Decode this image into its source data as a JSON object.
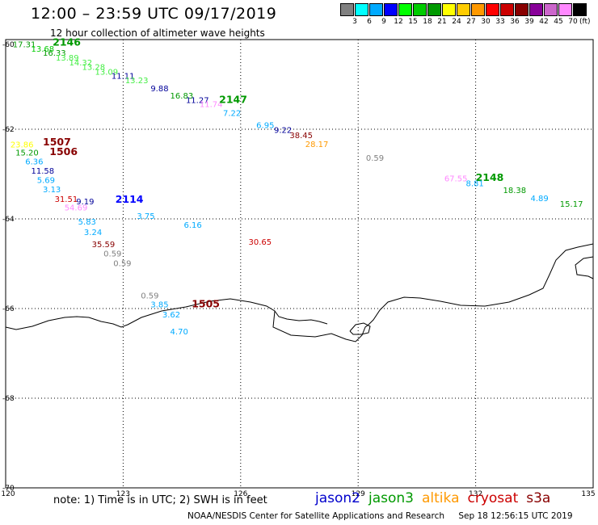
{
  "header": {
    "title": "12:00 – 23:59 UTC 09/17/2019",
    "subtitle": "12 hour collection of altimeter wave heights"
  },
  "legend": {
    "colors": [
      "#808080",
      "#00ffff",
      "#00aaff",
      "#0000ff",
      "#00ff00",
      "#00cc00",
      "#009900",
      "#ffff00",
      "#ffcc00",
      "#ff9900",
      "#ff0000",
      "#cc0000",
      "#880000",
      "#880099",
      "#cc66cc",
      "#ff88ff",
      "#000000"
    ],
    "levels": [
      "3",
      "6",
      "9",
      "12",
      "15",
      "18",
      "21",
      "24",
      "27",
      "30",
      "33",
      "36",
      "39",
      "42",
      "45",
      "70"
    ],
    "unit": "(ft)"
  },
  "axes": {
    "lon_labels": [
      "120",
      "123",
      "126",
      "129",
      "132",
      "135"
    ],
    "lat_labels": [
      "-60",
      "-62",
      "-64",
      "-66",
      "-68",
      "-70"
    ]
  },
  "observations": [
    {
      "text": "17.31",
      "lon": 120.18,
      "lat": -60.1,
      "color": "#009900"
    },
    {
      "text": "2146",
      "lon": 121.2,
      "lat": -60.06,
      "color": "#009900",
      "bold": true
    },
    {
      "text": "13.68",
      "lon": 120.65,
      "lat": -60.2,
      "color": "#00cc00"
    },
    {
      "text": "16.33",
      "lon": 120.95,
      "lat": -60.29,
      "color": "#009900"
    },
    {
      "text": "13.89",
      "lon": 121.28,
      "lat": -60.4,
      "color": "#44ee44"
    },
    {
      "text": "14.32",
      "lon": 121.62,
      "lat": -60.5,
      "color": "#44ee44"
    },
    {
      "text": "13.28",
      "lon": 121.95,
      "lat": -60.6,
      "color": "#44ee44"
    },
    {
      "text": "13.09",
      "lon": 122.28,
      "lat": -60.71,
      "color": "#44ee44"
    },
    {
      "text": "11.11",
      "lon": 122.7,
      "lat": -60.8,
      "color": "#000099"
    },
    {
      "text": "13.23",
      "lon": 123.05,
      "lat": -60.9,
      "color": "#44ee44"
    },
    {
      "text": "9.88",
      "lon": 123.7,
      "lat": -61.08,
      "color": "#000099"
    },
    {
      "text": "16.83",
      "lon": 124.2,
      "lat": -61.24,
      "color": "#009900"
    },
    {
      "text": "11.27",
      "lon": 124.6,
      "lat": -61.34,
      "color": "#000099"
    },
    {
      "text": "11.74",
      "lon": 124.95,
      "lat": -61.43,
      "color": "#ff88ff"
    },
    {
      "text": "2147",
      "lon": 125.45,
      "lat": -61.34,
      "color": "#009900",
      "bold": true
    },
    {
      "text": "7.22",
      "lon": 125.55,
      "lat": -61.63,
      "color": "#00aaff"
    },
    {
      "text": "6.95",
      "lon": 126.4,
      "lat": -61.9,
      "color": "#00aaff"
    },
    {
      "text": "9.22",
      "lon": 126.85,
      "lat": -62.01,
      "color": "#000099"
    },
    {
      "text": "38.45",
      "lon": 127.25,
      "lat": -62.13,
      "color": "#880000"
    },
    {
      "text": "28.17",
      "lon": 127.65,
      "lat": -62.32,
      "color": "#ff9900"
    },
    {
      "text": "0.59",
      "lon": 129.2,
      "lat": -62.63,
      "color": "#808080"
    },
    {
      "text": "23.86",
      "lon": 120.12,
      "lat": -62.33,
      "color": "#ffff00"
    },
    {
      "text": "1507",
      "lon": 120.95,
      "lat": -62.29,
      "color": "#880000",
      "bold": true
    },
    {
      "text": "15.20",
      "lon": 120.25,
      "lat": -62.51,
      "color": "#009900"
    },
    {
      "text": "1506",
      "lon": 121.12,
      "lat": -62.5,
      "color": "#880000",
      "bold": true
    },
    {
      "text": "6.36",
      "lon": 120.5,
      "lat": -62.71,
      "color": "#00aaff"
    },
    {
      "text": "11.58",
      "lon": 120.65,
      "lat": -62.92,
      "color": "#000099"
    },
    {
      "text": "5.69",
      "lon": 120.8,
      "lat": -63.13,
      "color": "#00aaff"
    },
    {
      "text": "3.13",
      "lon": 120.95,
      "lat": -63.33,
      "color": "#00aaff"
    },
    {
      "text": "31.51",
      "lon": 121.25,
      "lat": -63.55,
      "color": "#cc0000"
    },
    {
      "text": "9.19",
      "lon": 121.8,
      "lat": -63.6,
      "color": "#000099"
    },
    {
      "text": "2114",
      "lon": 122.8,
      "lat": -63.57,
      "color": "#0000ff",
      "bold": true
    },
    {
      "text": "54.69",
      "lon": 121.5,
      "lat": -63.74,
      "color": "#ff88ff"
    },
    {
      "text": "3.75",
      "lon": 123.35,
      "lat": -63.93,
      "color": "#00aaff"
    },
    {
      "text": "5.83",
      "lon": 121.85,
      "lat": -64.05,
      "color": "#00aaff"
    },
    {
      "text": "6.16",
      "lon": 124.55,
      "lat": -64.13,
      "color": "#00aaff"
    },
    {
      "text": "3.24",
      "lon": 122.0,
      "lat": -64.29,
      "color": "#00aaff"
    },
    {
      "text": "30.65",
      "lon": 126.2,
      "lat": -64.5,
      "color": "#cc0000"
    },
    {
      "text": "35.59",
      "lon": 122.2,
      "lat": -64.56,
      "color": "#880000"
    },
    {
      "text": "0.59",
      "lon": 122.5,
      "lat": -64.77,
      "color": "#808080"
    },
    {
      "text": "0.59",
      "lon": 122.75,
      "lat": -64.98,
      "color": "#808080"
    },
    {
      "text": "0.59",
      "lon": 123.45,
      "lat": -65.7,
      "color": "#808080"
    },
    {
      "text": "3.85",
      "lon": 123.7,
      "lat": -65.9,
      "color": "#00aaff"
    },
    {
      "text": "1505",
      "lon": 124.75,
      "lat": -65.9,
      "color": "#880000",
      "bold": true
    },
    {
      "text": "3.62",
      "lon": 124.0,
      "lat": -66.13,
      "color": "#00aaff"
    },
    {
      "text": "4.70",
      "lon": 124.2,
      "lat": -66.5,
      "color": "#00aaff"
    },
    {
      "text": "67.55",
      "lon": 131.2,
      "lat": -63.09,
      "color": "#ff88ff"
    },
    {
      "text": "2148",
      "lon": 132.0,
      "lat": -63.08,
      "color": "#009900",
      "bold": true
    },
    {
      "text": "8.81",
      "lon": 131.75,
      "lat": -63.2,
      "color": "#00aaff"
    },
    {
      "text": "18.38",
      "lon": 132.7,
      "lat": -63.35,
      "color": "#009900"
    },
    {
      "text": "4.89",
      "lon": 133.4,
      "lat": -63.53,
      "color": "#00aaff"
    },
    {
      "text": "15.17",
      "lon": 134.15,
      "lat": -63.66,
      "color": "#009900"
    }
  ],
  "footer": {
    "note": "note:  1) Time is in UTC;  2) SWH is in feet",
    "satellites": [
      {
        "name": "jason2",
        "color": "#0000cc"
      },
      {
        "name": "jason3",
        "color": "#009900"
      },
      {
        "name": "altika",
        "color": "#ff9900"
      },
      {
        "name": "cryosat",
        "color": "#cc0000"
      },
      {
        "name": "s3a",
        "color": "#880000"
      }
    ],
    "credit": "NOAA/NESDIS Center for Satellite Applications and Research",
    "credit_time": "Sep 18 12:56:15 UTC 2019"
  }
}
